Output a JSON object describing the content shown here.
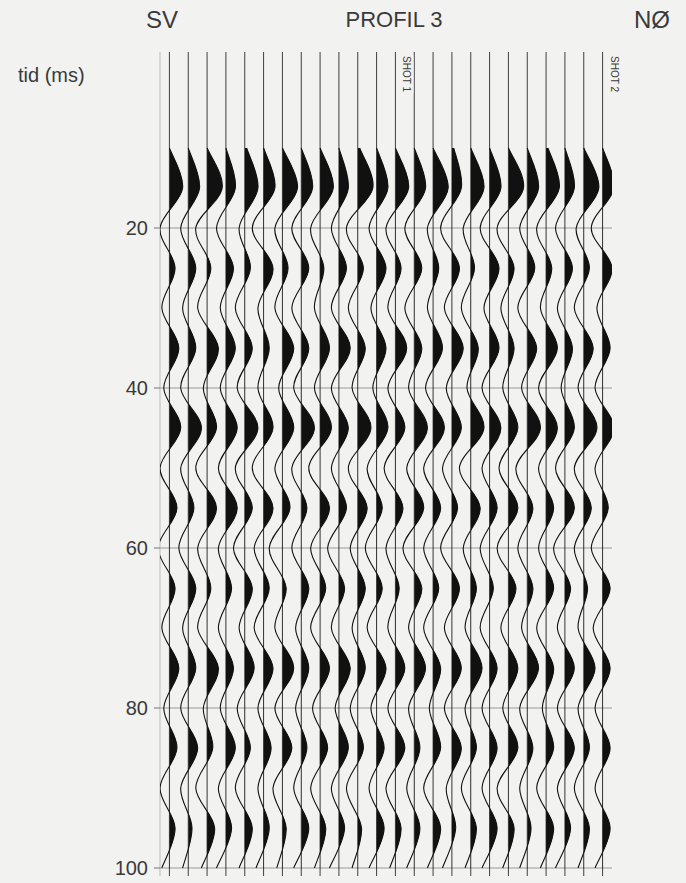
{
  "chart_data": {
    "type": "seismic",
    "title": "PROFIL 3",
    "left_label": "SV",
    "right_label": "NØ",
    "ylabel": "tid (ms)",
    "x": [
      10,
      15,
      20,
      25,
      30,
      35,
      40,
      45,
      50,
      55,
      60,
      65,
      70,
      75,
      80,
      85,
      90,
      95,
      100
    ],
    "xlim": [
      0.5,
      24.5
    ],
    "ylim": [
      -2,
      101
    ],
    "yticks": [
      20,
      40,
      60,
      80,
      100
    ],
    "grid": true,
    "tick_labels": "y",
    "color": "#111111",
    "annotations": [
      {
        "text": "SHOT 1",
        "trace": 13
      },
      {
        "text": "SHOT 2",
        "trace": 24
      }
    ],
    "series": [
      {
        "values": [
          0,
          0.7,
          -0.5,
          0.3,
          -0.4,
          0.5,
          -0.3,
          0.6,
          -0.5,
          0.4,
          -0.6,
          0.3,
          -0.4,
          0.5,
          -0.3,
          0.4,
          -0.5,
          0.3,
          -0.4
        ]
      },
      {
        "values": [
          0,
          0.6,
          -0.4,
          0.4,
          -0.3,
          0.4,
          -0.4,
          0.7,
          -0.4,
          0.3,
          -0.5,
          0.4,
          -0.3,
          0.4,
          -0.4,
          0.5,
          -0.4,
          0.2,
          -0.3
        ]
      },
      {
        "values": [
          0,
          0.8,
          -0.6,
          0.2,
          -0.5,
          0.6,
          -0.2,
          0.5,
          -0.6,
          0.5,
          -0.5,
          0.2,
          -0.5,
          0.6,
          -0.2,
          0.3,
          -0.6,
          0.4,
          -0.3
        ]
      },
      {
        "values": [
          0,
          0.5,
          -0.5,
          0.4,
          -0.3,
          0.5,
          -0.3,
          0.6,
          -0.4,
          0.6,
          -0.4,
          0.3,
          -0.4,
          0.4,
          -0.3,
          0.5,
          -0.4,
          0.3,
          -0.5
        ]
      },
      {
        "values": [
          0.1,
          0.7,
          -0.3,
          0.3,
          -0.5,
          0.4,
          -0.4,
          0.7,
          -0.5,
          0.4,
          -0.6,
          0.4,
          -0.3,
          0.5,
          -0.4,
          0.3,
          -0.5,
          0.4,
          -0.3
        ]
      },
      {
        "values": [
          0,
          0.6,
          -0.6,
          0.5,
          -0.3,
          0.3,
          -0.3,
          0.5,
          -0.6,
          0.5,
          -0.5,
          0.3,
          -0.5,
          0.5,
          -0.3,
          0.4,
          -0.3,
          0.3,
          -0.4
        ]
      },
      {
        "values": [
          0,
          0.8,
          -0.4,
          0.3,
          -0.4,
          0.6,
          -0.2,
          0.6,
          -0.4,
          0.4,
          -0.7,
          0.2,
          -0.4,
          0.6,
          -0.4,
          0.5,
          -0.5,
          0.2,
          -0.3
        ]
      },
      {
        "values": [
          0,
          0.6,
          -0.5,
          0.4,
          -0.5,
          0.4,
          -0.4,
          0.7,
          -0.5,
          0.3,
          -0.5,
          0.4,
          -0.3,
          0.4,
          -0.3,
          0.3,
          -0.4,
          0.4,
          -0.4
        ]
      },
      {
        "values": [
          0,
          0.7,
          -0.5,
          0.2,
          -0.3,
          0.5,
          -0.3,
          0.6,
          -0.6,
          0.5,
          -0.5,
          0.3,
          -0.5,
          0.5,
          -0.4,
          0.4,
          -0.5,
          0.3,
          -0.3
        ]
      },
      {
        "values": [
          0,
          0.5,
          -0.4,
          0.4,
          -0.4,
          0.6,
          -0.4,
          0.5,
          -0.4,
          0.4,
          -0.6,
          0.3,
          -0.4,
          0.6,
          -0.2,
          0.5,
          -0.4,
          0.3,
          -0.5
        ]
      },
      {
        "values": [
          0.1,
          0.8,
          -0.6,
          0.3,
          -0.5,
          0.4,
          -0.3,
          0.7,
          -0.5,
          0.5,
          -0.4,
          0.4,
          -0.3,
          0.4,
          -0.4,
          0.3,
          -0.6,
          0.2,
          -0.3
        ]
      },
      {
        "values": [
          0,
          0.6,
          -0.4,
          0.5,
          -0.3,
          0.5,
          -0.2,
          0.6,
          -0.5,
          0.3,
          -0.6,
          0.3,
          -0.5,
          0.5,
          -0.3,
          0.4,
          -0.4,
          0.4,
          -0.4
        ]
      },
      {
        "values": [
          0,
          0.7,
          -0.5,
          0.3,
          -0.4,
          0.6,
          -0.4,
          0.5,
          -0.6,
          0.4,
          -0.5,
          0.2,
          -0.4,
          0.5,
          -0.4,
          0.5,
          -0.5,
          0.3,
          -0.3
        ]
      },
      {
        "values": [
          0,
          0.6,
          -0.5,
          0.4,
          -0.5,
          0.4,
          -0.3,
          0.7,
          -0.4,
          0.5,
          -0.6,
          0.4,
          -0.3,
          0.6,
          -0.3,
          0.3,
          -0.4,
          0.3,
          -0.4
        ]
      },
      {
        "values": [
          0,
          0.8,
          -0.3,
          0.3,
          -0.3,
          0.5,
          -0.4,
          0.6,
          -0.5,
          0.4,
          -0.5,
          0.3,
          -0.5,
          0.4,
          -0.2,
          0.4,
          -0.5,
          0.4,
          -0.3
        ]
      },
      {
        "values": [
          0.1,
          0.5,
          -0.6,
          0.4,
          -0.4,
          0.6,
          -0.3,
          0.5,
          -0.5,
          0.3,
          -0.6,
          0.4,
          -0.4,
          0.5,
          -0.4,
          0.5,
          -0.3,
          0.2,
          -0.5
        ]
      },
      {
        "values": [
          0,
          0.7,
          -0.4,
          0.2,
          -0.5,
          0.4,
          -0.2,
          0.7,
          -0.6,
          0.5,
          -0.4,
          0.3,
          -0.3,
          0.6,
          -0.3,
          0.3,
          -0.5,
          0.3,
          -0.3
        ]
      },
      {
        "values": [
          0,
          0.6,
          -0.5,
          0.5,
          -0.3,
          0.5,
          -0.4,
          0.6,
          -0.4,
          0.4,
          -0.5,
          0.2,
          -0.5,
          0.4,
          -0.4,
          0.4,
          -0.4,
          0.4,
          -0.4
        ]
      },
      {
        "values": [
          0,
          0.8,
          -0.6,
          0.3,
          -0.4,
          0.3,
          -0.3,
          0.5,
          -0.5,
          0.5,
          -0.6,
          0.4,
          -0.4,
          0.5,
          -0.3,
          0.5,
          -0.6,
          0.3,
          -0.3
        ]
      },
      {
        "values": [
          0,
          0.6,
          -0.4,
          0.4,
          -0.5,
          0.5,
          -0.3,
          0.7,
          -0.6,
          0.3,
          -0.5,
          0.3,
          -0.3,
          0.6,
          -0.4,
          0.3,
          -0.4,
          0.2,
          -0.4
        ]
      },
      {
        "values": [
          0.1,
          0.7,
          -0.5,
          0.3,
          -0.3,
          0.6,
          -0.4,
          0.6,
          -0.4,
          0.4,
          -0.4,
          0.4,
          -0.5,
          0.4,
          -0.2,
          0.4,
          -0.5,
          0.4,
          -0.3
        ]
      },
      {
        "values": [
          0,
          0.5,
          -0.5,
          0.4,
          -0.4,
          0.4,
          -0.2,
          0.5,
          -0.5,
          0.5,
          -0.6,
          0.3,
          -0.4,
          0.5,
          -0.4,
          0.5,
          -0.4,
          0.3,
          -0.5
        ]
      },
      {
        "values": [
          0,
          0.8,
          -0.4,
          0.3,
          -0.5,
          0.5,
          -0.3,
          0.7,
          -0.5,
          0.4,
          -0.5,
          0.2,
          -0.3,
          0.6,
          -0.3,
          0.3,
          -0.5,
          0.3,
          -0.3
        ]
      },
      {
        "values": [
          0,
          0.6,
          -0.6,
          0.5,
          -0.3,
          0.4,
          -0.4,
          0.6,
          -0.4,
          0.3,
          -0.6,
          0.4,
          -0.5,
          0.4,
          -0.4,
          0.4,
          -0.4,
          0.4,
          -0.4
        ]
      }
    ]
  }
}
